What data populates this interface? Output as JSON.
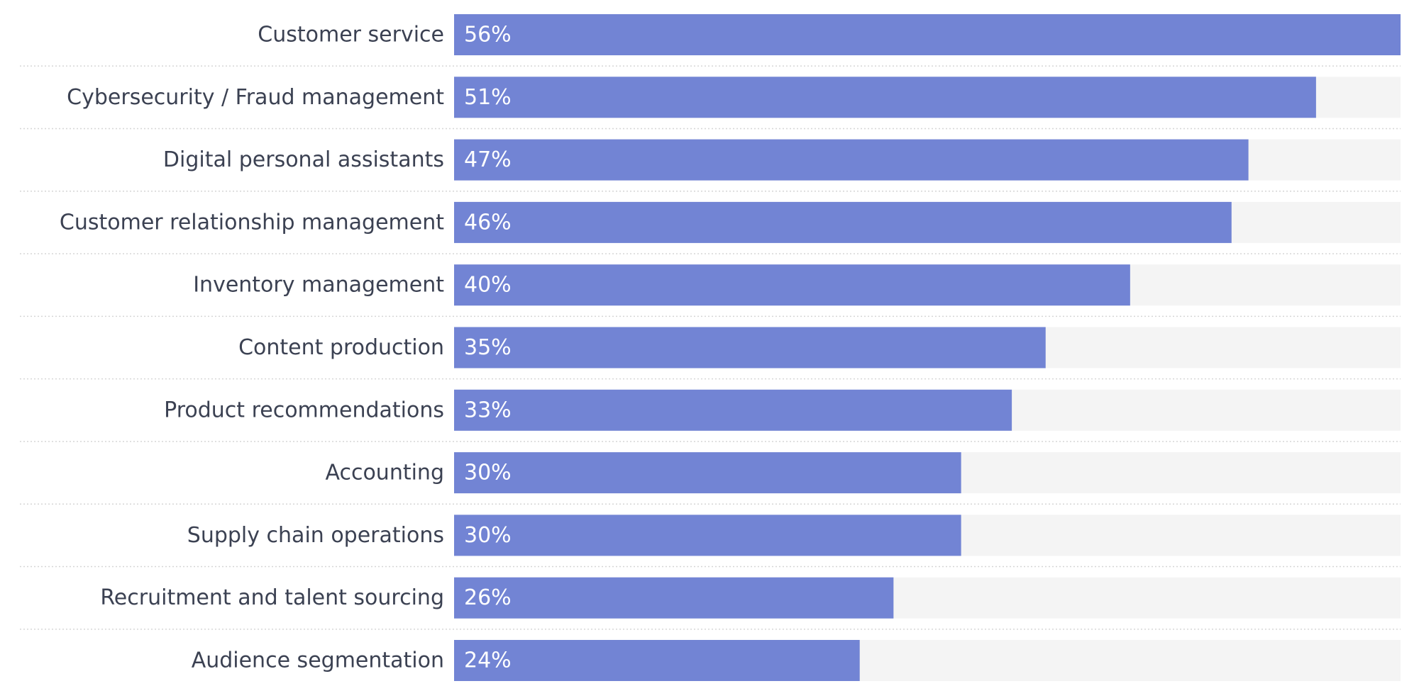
{
  "chart_data": {
    "type": "bar",
    "orientation": "horizontal",
    "categories": [
      "Customer service",
      "Cybersecurity / Fraud management",
      "Digital personal assistants",
      "Customer relationship management",
      "Inventory management",
      "Content production",
      "Product recommendations",
      "Accounting",
      "Supply chain operations",
      "Recruitment and talent sourcing",
      "Audience segmentation"
    ],
    "values": [
      56,
      51,
      47,
      46,
      40,
      35,
      33,
      30,
      30,
      26,
      24
    ],
    "value_labels": [
      "56%",
      "51%",
      "47%",
      "46%",
      "40%",
      "35%",
      "33%",
      "30%",
      "30%",
      "26%",
      "24%"
    ],
    "unit": "%",
    "xlim": [
      0,
      56
    ],
    "grid": false,
    "legend": "none",
    "colors": {
      "bar": "#7284d4",
      "track": "#f4f4f4",
      "separator": "#d6d6d6",
      "category_text": "#3b4152",
      "value_text": "#ffffff"
    }
  }
}
